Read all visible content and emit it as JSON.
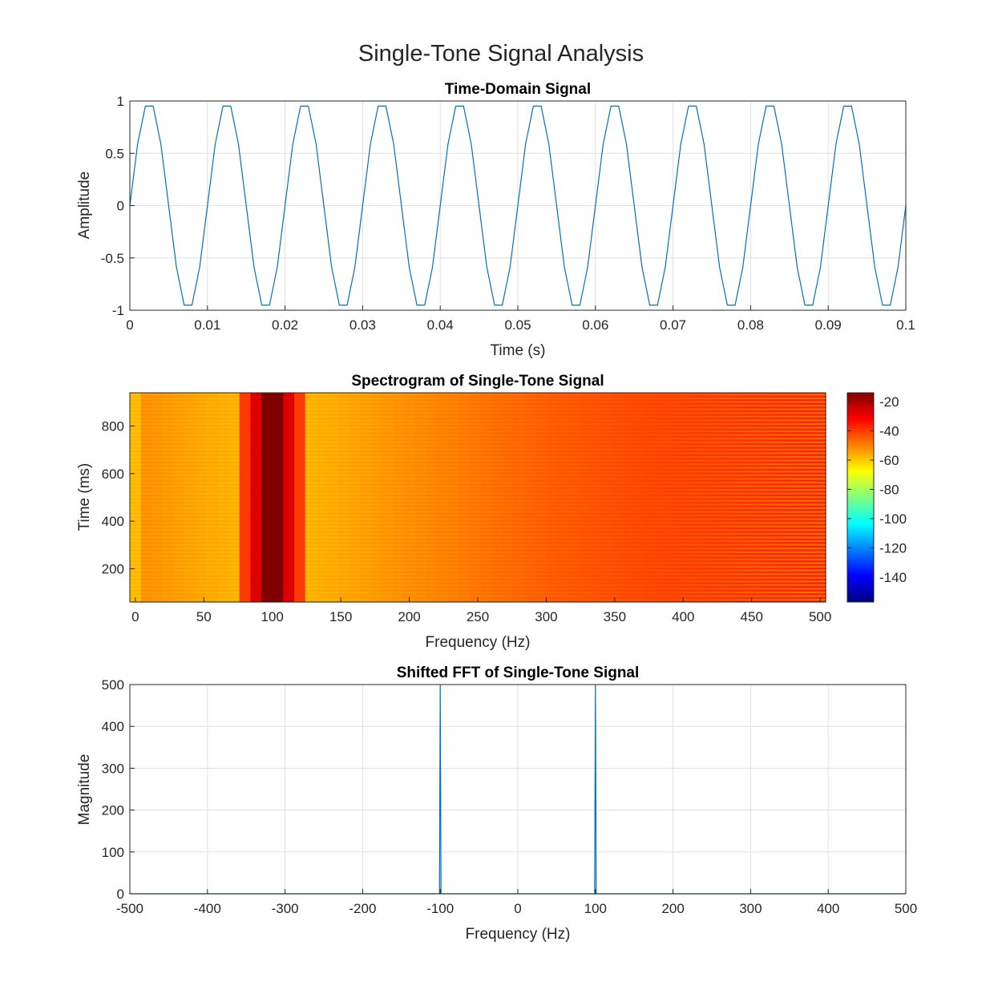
{
  "figure_title": "Single-Tone Signal Analysis",
  "chart_data": [
    {
      "type": "line",
      "title": "Time-Domain Signal",
      "xlabel": "Time (s)",
      "ylabel": "Amplitude",
      "xlim": [
        0,
        0.1
      ],
      "ylim": [
        -1,
        1
      ],
      "grid": true,
      "xticks": [
        0,
        0.01,
        0.02,
        0.03,
        0.04,
        0.05,
        0.06,
        0.07,
        0.08,
        0.09,
        0.1
      ],
      "xtick_labels": [
        "0",
        "0.01",
        "0.02",
        "0.03",
        "0.04",
        "0.05",
        "0.06",
        "0.07",
        "0.08",
        "0.09",
        "0.1"
      ],
      "yticks": [
        -1,
        -0.5,
        0,
        0.5,
        1
      ],
      "ytick_labels": [
        "-1",
        "-0.5",
        "0",
        "0.5",
        "1"
      ],
      "series": [
        {
          "color": "#0072bd",
          "signal": "sine",
          "frequency_hz": 100,
          "amplitude": 1,
          "sample_rate_hz": 1000,
          "x_start": 0,
          "x_end": 0.1
        }
      ]
    },
    {
      "type": "heatmap",
      "title": "Spectrogram of Single-Tone Signal",
      "xlabel": "Frequency (Hz)",
      "ylabel": "Time (ms)",
      "xlim": [
        -4,
        504
      ],
      "ylim": [
        60,
        940
      ],
      "xticks": [
        0,
        50,
        100,
        150,
        200,
        250,
        300,
        350,
        400,
        450,
        500
      ],
      "xtick_labels": [
        "0",
        "50",
        "100",
        "150",
        "200",
        "250",
        "300",
        "350",
        "400",
        "450",
        "500"
      ],
      "yticks": [
        200,
        400,
        600,
        800
      ],
      "ytick_labels": [
        "200",
        "400",
        "600",
        "800"
      ],
      "colormap": "jet",
      "colorbar": {
        "clim": [
          -157,
          -14
        ],
        "ticks": [
          -140,
          -120,
          -100,
          -80,
          -60,
          -40,
          -20
        ],
        "tick_labels": [
          "-140",
          "-120",
          "-100",
          "-80",
          "-60",
          "-40",
          "-20"
        ]
      },
      "peak_frequency_hz": 100,
      "peak_level_db": -14,
      "floor_level_db": -75
    },
    {
      "type": "line",
      "title": "Shifted FFT of Single-Tone Signal",
      "xlabel": "Frequency (Hz)",
      "ylabel": "Magnitude",
      "xlim": [
        -500,
        500
      ],
      "ylim": [
        0,
        500
      ],
      "grid": true,
      "xticks": [
        -500,
        -400,
        -300,
        -200,
        -100,
        0,
        100,
        200,
        300,
        400,
        500
      ],
      "xtick_labels": [
        "-500",
        "-400",
        "-300",
        "-200",
        "-100",
        "0",
        "100",
        "200",
        "300",
        "400",
        "500"
      ],
      "yticks": [
        0,
        100,
        200,
        300,
        400,
        500
      ],
      "ytick_labels": [
        "0",
        "100",
        "200",
        "300",
        "400",
        "500"
      ],
      "series": [
        {
          "color": "#0072bd",
          "x": [
            -500,
            -101,
            -100,
            -99,
            99,
            100,
            101,
            500
          ],
          "y": [
            0,
            0,
            500,
            0,
            0,
            500,
            0,
            0
          ]
        }
      ]
    }
  ]
}
